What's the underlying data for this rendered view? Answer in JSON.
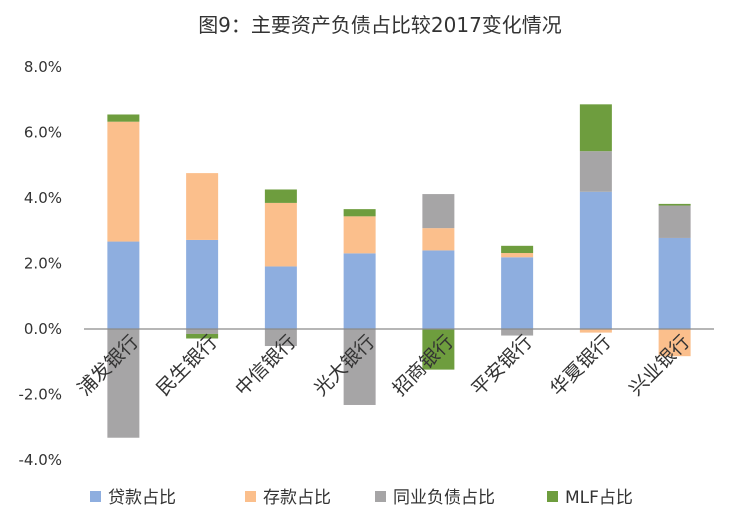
{
  "chart_data": {
    "type": "bar",
    "stacked": true,
    "title": "图9：主要资产负债占比较2017变化情况",
    "xlabel": "",
    "ylabel": "",
    "ylim": [
      -4,
      8
    ],
    "yticks": [
      8,
      6,
      4,
      2,
      0,
      -2,
      -4
    ],
    "ytick_labels": [
      "8.0%",
      "6.0%",
      "4.0%",
      "2.0%",
      "0.0%",
      "-2.0%",
      "-4.0%"
    ],
    "categories": [
      "浦发银行",
      "民生银行",
      "中信银行",
      "光大银行",
      "招商银行",
      "平安银行",
      "华夏银行",
      "兴业银行"
    ],
    "legend_position": "bottom",
    "series": [
      {
        "name": "贷款占比",
        "color": "#8eaedf",
        "values": [
          2.67,
          2.72,
          1.91,
          2.31,
          2.4,
          2.19,
          4.19,
          2.78
        ]
      },
      {
        "name": "存款占比",
        "color": "#fbbf8c",
        "values": [
          3.66,
          2.04,
          1.94,
          1.13,
          0.68,
          0.13,
          -0.11,
          -0.83
        ]
      },
      {
        "name": "同业负债占比",
        "color": "#a6a5a6",
        "values": [
          -3.32,
          -0.15,
          -0.52,
          -2.32,
          1.04,
          -0.2,
          1.24,
          0.99
        ]
      },
      {
        "name": "MLF占比",
        "color": "#6e9d3e",
        "values": [
          0.22,
          -0.14,
          0.41,
          0.22,
          -1.24,
          0.22,
          1.43,
          0.05
        ]
      }
    ]
  }
}
